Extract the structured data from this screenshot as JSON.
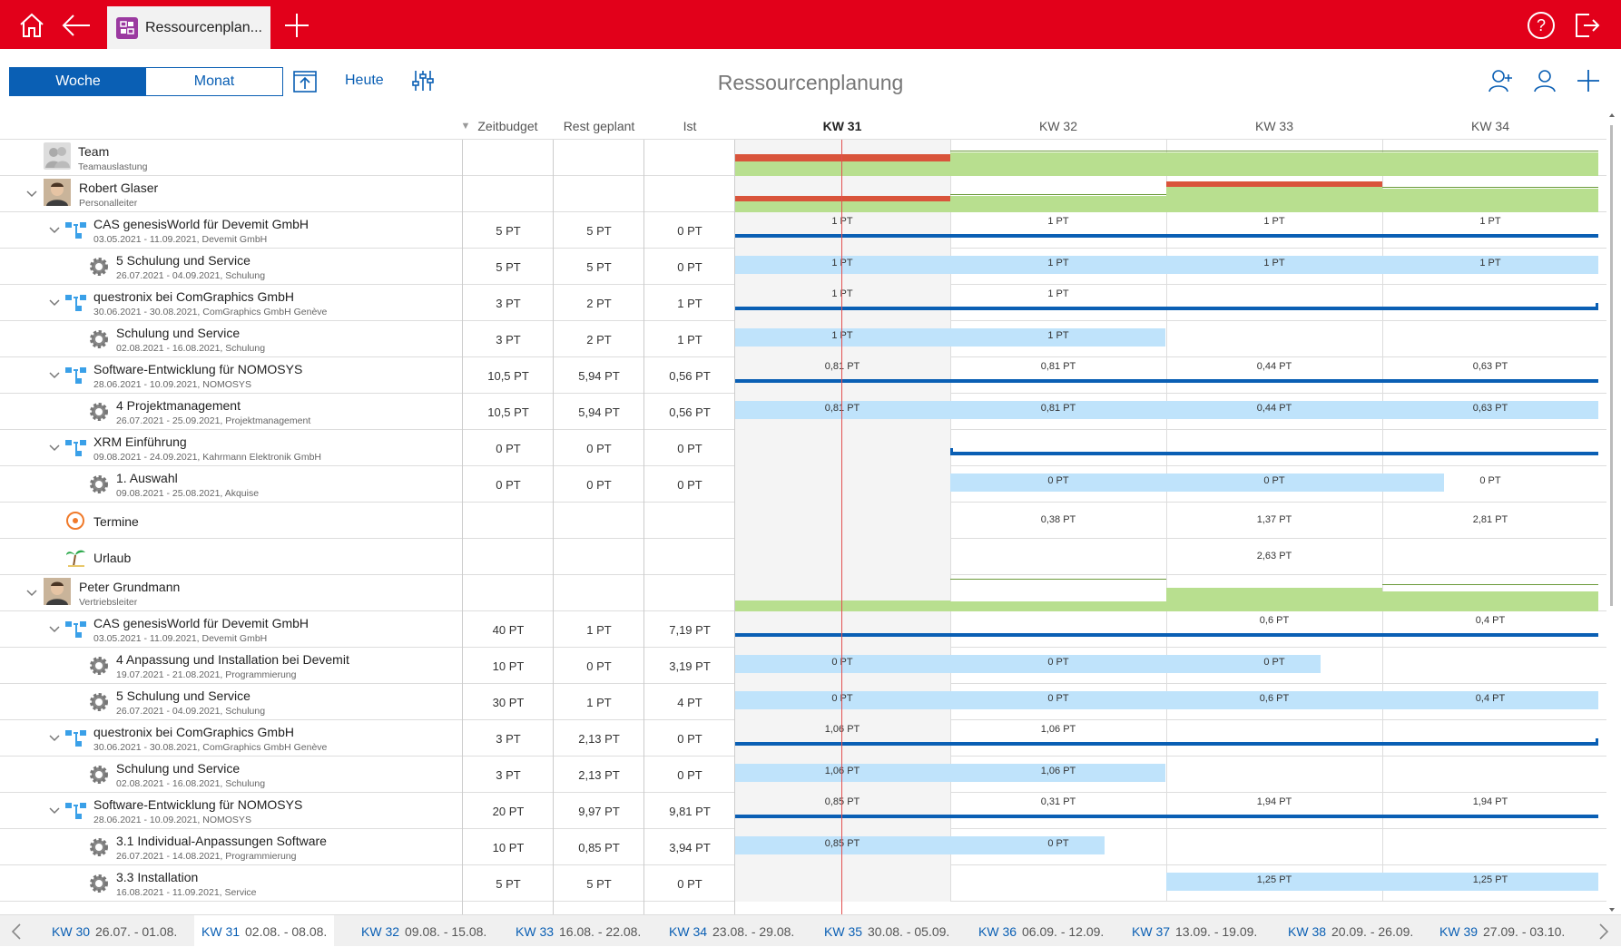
{
  "app": {
    "tab_title": "Ressourcenplan...",
    "page_title": "Ressourcenplanung"
  },
  "toolbar": {
    "view_week": "Woche",
    "view_month": "Monat",
    "today": "Heute"
  },
  "columns": {
    "zeitbudget": "Zeitbudget",
    "rest_geplant": "Rest geplant",
    "ist": "Ist",
    "weeks": [
      "KW 31",
      "KW 32",
      "KW 33",
      "KW 34"
    ]
  },
  "rows": [
    {
      "type": "team",
      "name": "Team",
      "sub": "Teamauslastung",
      "budget": "",
      "rest": "",
      "ist": "",
      "weeks": [
        "",
        "",
        "",
        ""
      ]
    },
    {
      "type": "person",
      "name": "Robert Glaser",
      "sub": "Personalleiter",
      "budget": "",
      "rest": "",
      "ist": "",
      "weeks": [
        "",
        "",
        "",
        ""
      ]
    },
    {
      "type": "project",
      "name": "CAS genesisWorld für Devemit GmbH",
      "sub": "03.05.2021 - 11.09.2021, Devemit GmbH",
      "budget": "5 PT",
      "rest": "5 PT",
      "ist": "0 PT",
      "weeks": [
        "1 PT",
        "1 PT",
        "1 PT",
        "1 PT"
      ]
    },
    {
      "type": "task",
      "name": "5 Schulung und Service",
      "sub": "26.07.2021 - 04.09.2021, Schulung",
      "budget": "5 PT",
      "rest": "5 PT",
      "ist": "0 PT",
      "weeks": [
        "1 PT",
        "1 PT",
        "1 PT",
        "1 PT"
      ]
    },
    {
      "type": "project",
      "name": "questronix bei ComGraphics GmbH",
      "sub": "30.06.2021 - 30.08.2021, ComGraphics GmbH Genève",
      "budget": "3 PT",
      "rest": "2 PT",
      "ist": "1 PT",
      "weeks": [
        "1 PT",
        "1 PT",
        "",
        ""
      ]
    },
    {
      "type": "task",
      "name": "Schulung und Service",
      "sub": "02.08.2021 - 16.08.2021, Schulung",
      "budget": "3 PT",
      "rest": "2 PT",
      "ist": "1 PT",
      "weeks": [
        "1 PT",
        "1 PT",
        "",
        ""
      ]
    },
    {
      "type": "project",
      "name": "Software-Entwicklung für NOMOSYS",
      "sub": "28.06.2021 - 10.09.2021, NOMOSYS",
      "budget": "10,5 PT",
      "rest": "5,94 PT",
      "ist": "0,56 PT",
      "weeks": [
        "0,81 PT",
        "0,81 PT",
        "0,44 PT",
        "0,63 PT"
      ]
    },
    {
      "type": "task",
      "name": "4 Projektmanagement",
      "sub": "26.07.2021 - 25.09.2021, Projektmanagement",
      "budget": "10,5 PT",
      "rest": "5,94 PT",
      "ist": "0,56 PT",
      "weeks": [
        "0,81 PT",
        "0,81 PT",
        "0,44 PT",
        "0,63 PT"
      ]
    },
    {
      "type": "project",
      "name": "XRM Einführung",
      "sub": "09.08.2021 - 24.09.2021, Kahrmann Elektronik GmbH",
      "budget": "0 PT",
      "rest": "0 PT",
      "ist": "0 PT",
      "weeks": [
        "",
        "",
        "",
        ""
      ]
    },
    {
      "type": "task",
      "name": "1. Auswahl",
      "sub": "09.08.2021 - 25.08.2021, Akquise",
      "budget": "0 PT",
      "rest": "0 PT",
      "ist": "0 PT",
      "weeks": [
        "",
        "0 PT",
        "0 PT",
        "0 PT"
      ]
    },
    {
      "type": "termine",
      "name": "Termine",
      "sub": "",
      "budget": "",
      "rest": "",
      "ist": "",
      "weeks": [
        "",
        "0,38 PT",
        "1,37 PT",
        "2,81 PT"
      ]
    },
    {
      "type": "urlaub",
      "name": "Urlaub",
      "sub": "",
      "budget": "",
      "rest": "",
      "ist": "",
      "weeks": [
        "",
        "",
        "2,63 PT",
        ""
      ]
    },
    {
      "type": "person",
      "name": "Peter Grundmann",
      "sub": "Vertriebsleiter",
      "budget": "",
      "rest": "",
      "ist": "",
      "weeks": [
        "",
        "",
        "",
        ""
      ]
    },
    {
      "type": "project",
      "name": "CAS genesisWorld für Devemit GmbH",
      "sub": "03.05.2021 - 11.09.2021, Devemit GmbH",
      "budget": "40 PT",
      "rest": "1 PT",
      "ist": "7,19 PT",
      "weeks": [
        "",
        "",
        "0,6 PT",
        "0,4 PT"
      ]
    },
    {
      "type": "task",
      "name": "4 Anpassung und Installation bei Devemit",
      "sub": "19.07.2021 - 21.08.2021, Programmierung",
      "budget": "10 PT",
      "rest": "0 PT",
      "ist": "3,19 PT",
      "weeks": [
        "0 PT",
        "0 PT",
        "0 PT",
        ""
      ]
    },
    {
      "type": "task",
      "name": "5 Schulung und Service",
      "sub": "26.07.2021 - 04.09.2021, Schulung",
      "budget": "30 PT",
      "rest": "1 PT",
      "ist": "4 PT",
      "weeks": [
        "0 PT",
        "0 PT",
        "0,6 PT",
        "0,4 PT"
      ]
    },
    {
      "type": "project",
      "name": "questronix bei ComGraphics GmbH",
      "sub": "30.06.2021 - 30.08.2021, ComGraphics GmbH Genève",
      "budget": "3 PT",
      "rest": "2,13 PT",
      "ist": "0 PT",
      "weeks": [
        "1,06 PT",
        "1,06 PT",
        "",
        ""
      ]
    },
    {
      "type": "task",
      "name": "Schulung und Service",
      "sub": "02.08.2021 - 16.08.2021, Schulung",
      "budget": "3 PT",
      "rest": "2,13 PT",
      "ist": "0 PT",
      "weeks": [
        "1,06 PT",
        "1,06 PT",
        "",
        ""
      ]
    },
    {
      "type": "project",
      "name": "Software-Entwicklung für NOMOSYS",
      "sub": "28.06.2021 - 10.09.2021, NOMOSYS",
      "budget": "20 PT",
      "rest": "9,97 PT",
      "ist": "9,81 PT",
      "weeks": [
        "0,85 PT",
        "0,31 PT",
        "1,94 PT",
        "1,94 PT"
      ]
    },
    {
      "type": "task",
      "name": "3.1 Individual-Anpassungen Software",
      "sub": "26.07.2021 - 14.08.2021, Programmierung",
      "budget": "10 PT",
      "rest": "0,85 PT",
      "ist": "3,94 PT",
      "weeks": [
        "0,85 PT",
        "0 PT",
        "",
        ""
      ]
    },
    {
      "type": "task",
      "name": "3.3 Installation",
      "sub": "16.08.2021 - 11.09.2021, Service",
      "budget": "5 PT",
      "rest": "5 PT",
      "ist": "0 PT",
      "weeks": [
        "",
        "",
        "1,25 PT",
        "1,25 PT"
      ]
    }
  ],
  "week_nav": [
    {
      "kw": "KW 30",
      "dates": "26.07. - 01.08."
    },
    {
      "kw": "KW 31",
      "dates": "02.08. - 08.08."
    },
    {
      "kw": "KW 32",
      "dates": "09.08. - 15.08."
    },
    {
      "kw": "KW 33",
      "dates": "16.08. - 22.08."
    },
    {
      "kw": "KW 34",
      "dates": "23.08. - 29.08."
    },
    {
      "kw": "KW 35",
      "dates": "30.08. - 05.09."
    },
    {
      "kw": "KW 36",
      "dates": "06.09. - 12.09."
    },
    {
      "kw": "KW 37",
      "dates": "13.09. - 19.09."
    },
    {
      "kw": "KW 38",
      "dates": "20.09. - 26.09."
    },
    {
      "kw": "KW 39",
      "dates": "27.09. - 03.10."
    }
  ],
  "colors": {
    "brand": "#e2001a",
    "accent": "#0a5fb4",
    "bar_light": "#bfe3fb",
    "over": "#d9543b",
    "capacity": "#b8df8f"
  }
}
